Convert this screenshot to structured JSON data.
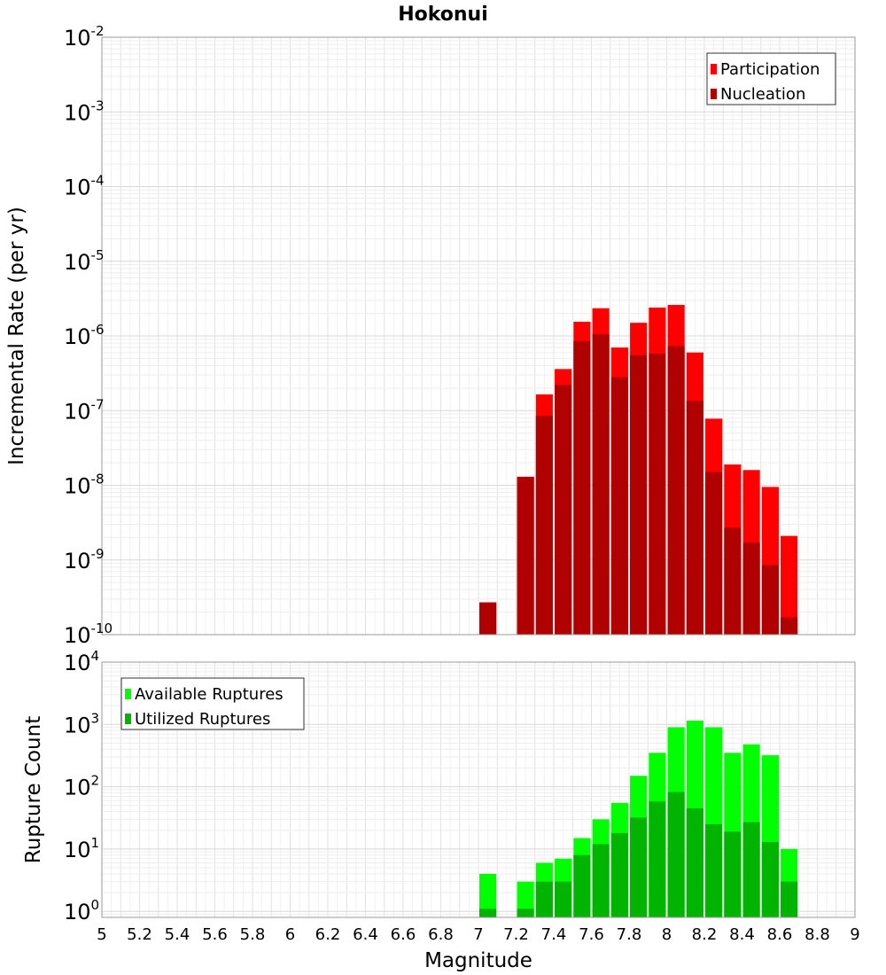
{
  "chart_data": [
    {
      "type": "bar",
      "title": "Hokonui",
      "xlabel": "",
      "ylabel": "Incremental Rate (per yr)",
      "xlim": [
        5,
        9
      ],
      "ylim": [
        1e-10,
        0.01
      ],
      "yscale": "log",
      "y_ticks": [
        {
          "base": "10",
          "exp": "-2"
        },
        {
          "base": "10",
          "exp": "-3"
        },
        {
          "base": "10",
          "exp": "-4"
        },
        {
          "base": "10",
          "exp": "-5"
        },
        {
          "base": "10",
          "exp": "-6"
        },
        {
          "base": "10",
          "exp": "-7"
        },
        {
          "base": "10",
          "exp": "-8"
        },
        {
          "base": "10",
          "exp": "-9"
        },
        {
          "base": "10",
          "exp": "-10"
        }
      ],
      "bar_width": 0.09,
      "grid": true,
      "legend_position": "top-right",
      "x": [
        7.05,
        7.25,
        7.35,
        7.45,
        7.55,
        7.65,
        7.75,
        7.85,
        7.95,
        8.05,
        8.15,
        8.25,
        8.35,
        8.45,
        8.55,
        8.65
      ],
      "series": [
        {
          "name": "Participation",
          "color": "#ff0000",
          "values": [
            2.7e-10,
            1.3e-08,
            1.65e-07,
            3.6e-07,
            1.55e-06,
            2.35e-06,
            7e-07,
            1.5e-06,
            2.4e-06,
            2.6e-06,
            6e-07,
            7.8e-08,
            1.9e-08,
            1.6e-08,
            9.5e-09,
            2.1e-09
          ]
        },
        {
          "name": "Nucleation",
          "color": "#b00000",
          "values": [
            2.7e-10,
            1.3e-08,
            8.5e-08,
            2.2e-07,
            8.5e-07,
            1.05e-06,
            2.8e-07,
            5.5e-07,
            5.8e-07,
            7.3e-07,
            1.35e-07,
            1.5e-08,
            2.7e-09,
            1.7e-09,
            8.5e-10,
            1.7e-10
          ]
        }
      ]
    },
    {
      "type": "bar",
      "title": "",
      "xlabel": "Magnitude",
      "ylabel": "Rupture Count",
      "xlim": [
        5,
        9
      ],
      "ylim": [
        0.8,
        10000
      ],
      "yscale": "log",
      "x_ticks": [
        "5",
        "5.2",
        "5.4",
        "5.6",
        "5.8",
        "6",
        "6.2",
        "6.4",
        "6.6",
        "6.8",
        "7",
        "7.2",
        "7.4",
        "7.6",
        "7.8",
        "8",
        "8.2",
        "8.4",
        "8.6",
        "8.8",
        "9"
      ],
      "y_ticks": [
        {
          "base": "10",
          "exp": "4"
        },
        {
          "base": "10",
          "exp": "3"
        },
        {
          "base": "10",
          "exp": "2"
        },
        {
          "base": "10",
          "exp": "1"
        },
        {
          "base": "10",
          "exp": "0"
        }
      ],
      "bar_width": 0.09,
      "grid": true,
      "legend_position": "top-left",
      "x": [
        7.05,
        7.25,
        7.35,
        7.45,
        7.55,
        7.65,
        7.75,
        7.85,
        7.95,
        8.05,
        8.15,
        8.25,
        8.35,
        8.45,
        8.55,
        8.65
      ],
      "series": [
        {
          "name": "Available Ruptures",
          "color": "#00ff00",
          "values": [
            4,
            3,
            6,
            7,
            15,
            30,
            55,
            150,
            350,
            900,
            1150,
            900,
            350,
            480,
            320,
            10
          ]
        },
        {
          "name": "Utilized Ruptures",
          "color": "#00b400",
          "values": [
            1.1,
            1.1,
            3,
            3,
            8,
            12,
            18,
            32,
            58,
            82,
            45,
            25,
            19,
            27,
            13,
            3
          ]
        }
      ]
    }
  ]
}
